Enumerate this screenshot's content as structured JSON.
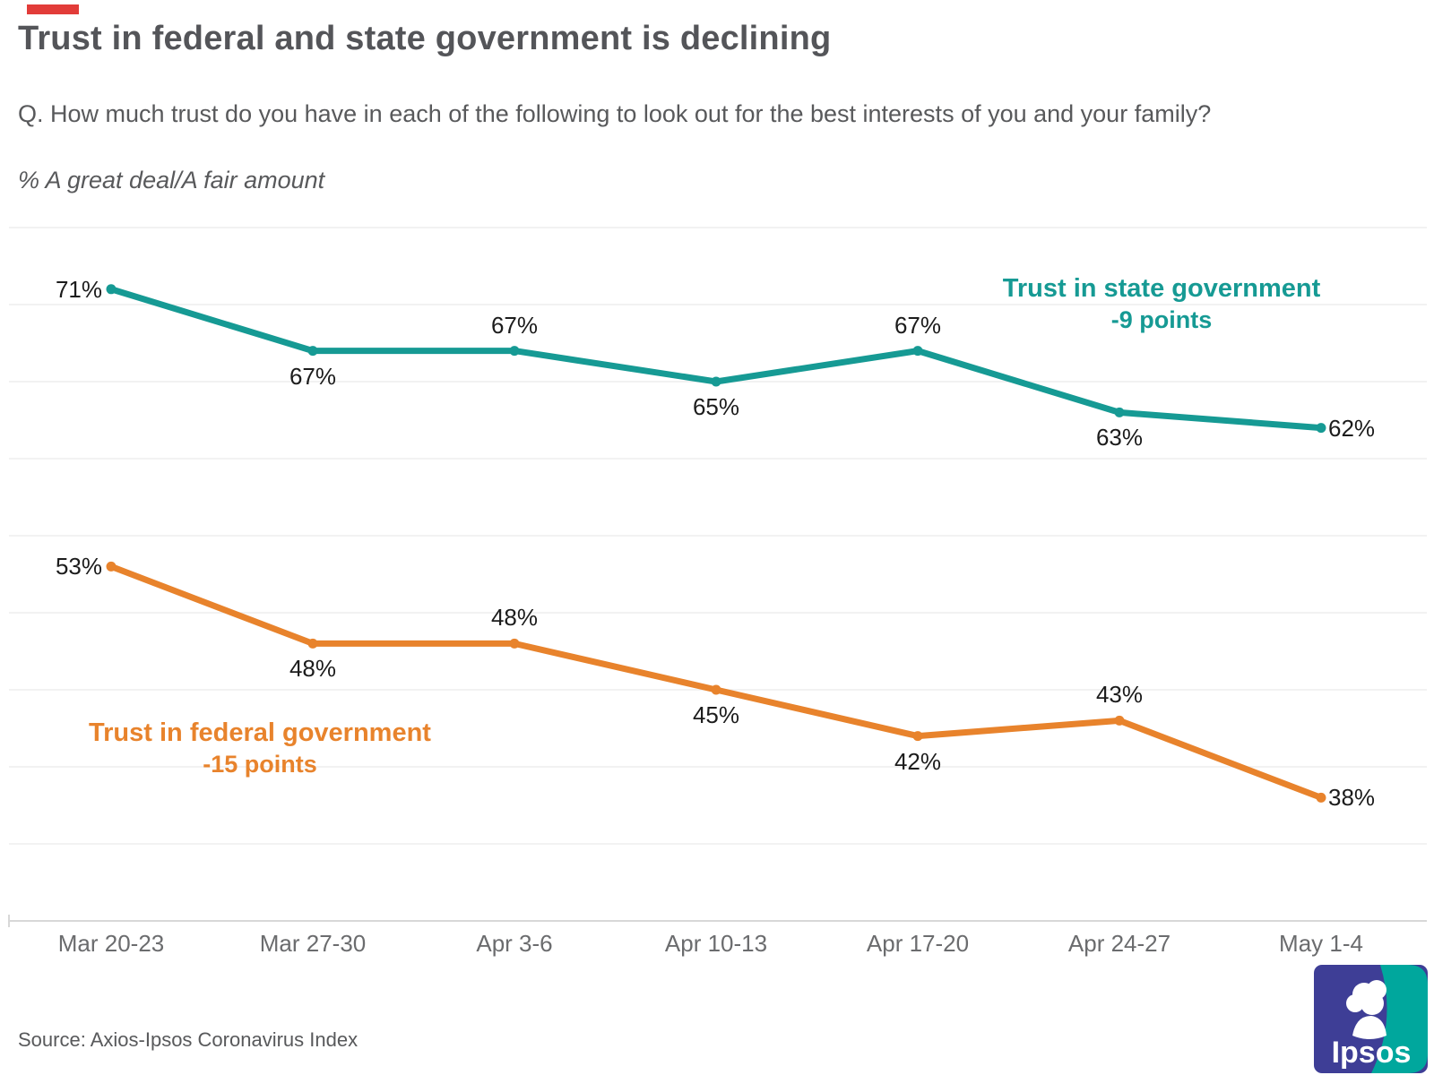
{
  "header": {
    "title": "Trust in federal and state government is declining",
    "question": "Q. How much trust do you have in each of the following to look out for the best interests of you and your family?",
    "measure_note": "% A great deal/A fair amount"
  },
  "footer": {
    "source": "Source: Axios-Ipsos Coronavirus Index",
    "logo_text": "Ipsos"
  },
  "colors": {
    "state": "#169a94",
    "federal": "#e8832c",
    "title_text": "#545559",
    "body_text": "#58595b",
    "axis_text": "#6b6c6e",
    "data_label_text": "#1c1c1c",
    "gridline": "#ededed",
    "axis_line": "#d8d8d8",
    "accent_red": "#e23c39",
    "logo_blue": "#3e3e96",
    "logo_teal": "#00a79d"
  },
  "chart_data": {
    "type": "line",
    "title": "Trust in federal and state government is declining",
    "xlabel": "",
    "ylabel": "% A great deal/A fair amount",
    "categories": [
      "Mar 20-23",
      "Mar 27-30",
      "Apr 3-6",
      "Apr 10-13",
      "Apr 17-20",
      "Apr 24-27",
      "May 1-4"
    ],
    "series": [
      {
        "name": "Trust in state government",
        "change_label": "-9 points",
        "color_key": "state",
        "values": [
          71,
          67,
          67,
          65,
          67,
          63,
          62
        ],
        "value_labels": [
          "71%",
          "67%",
          "67%",
          "65%",
          "67%",
          "63%",
          "62%"
        ],
        "label_pos": [
          "left",
          "below",
          "above",
          "below",
          "above",
          "below",
          "right"
        ]
      },
      {
        "name": "Trust in federal government",
        "change_label": "-15 points",
        "color_key": "federal",
        "values": [
          53,
          48,
          48,
          45,
          42,
          43,
          38
        ],
        "value_labels": [
          "53%",
          "48%",
          "48%",
          "45%",
          "42%",
          "43%",
          "38%"
        ],
        "label_pos": [
          "left",
          "below",
          "above",
          "below",
          "below",
          "above",
          "right"
        ]
      }
    ],
    "ylim": [
      30,
      75
    ],
    "grid_step": 5,
    "grid": true,
    "y_axis_labels_visible": false,
    "legend_position": "inline-annotations"
  }
}
